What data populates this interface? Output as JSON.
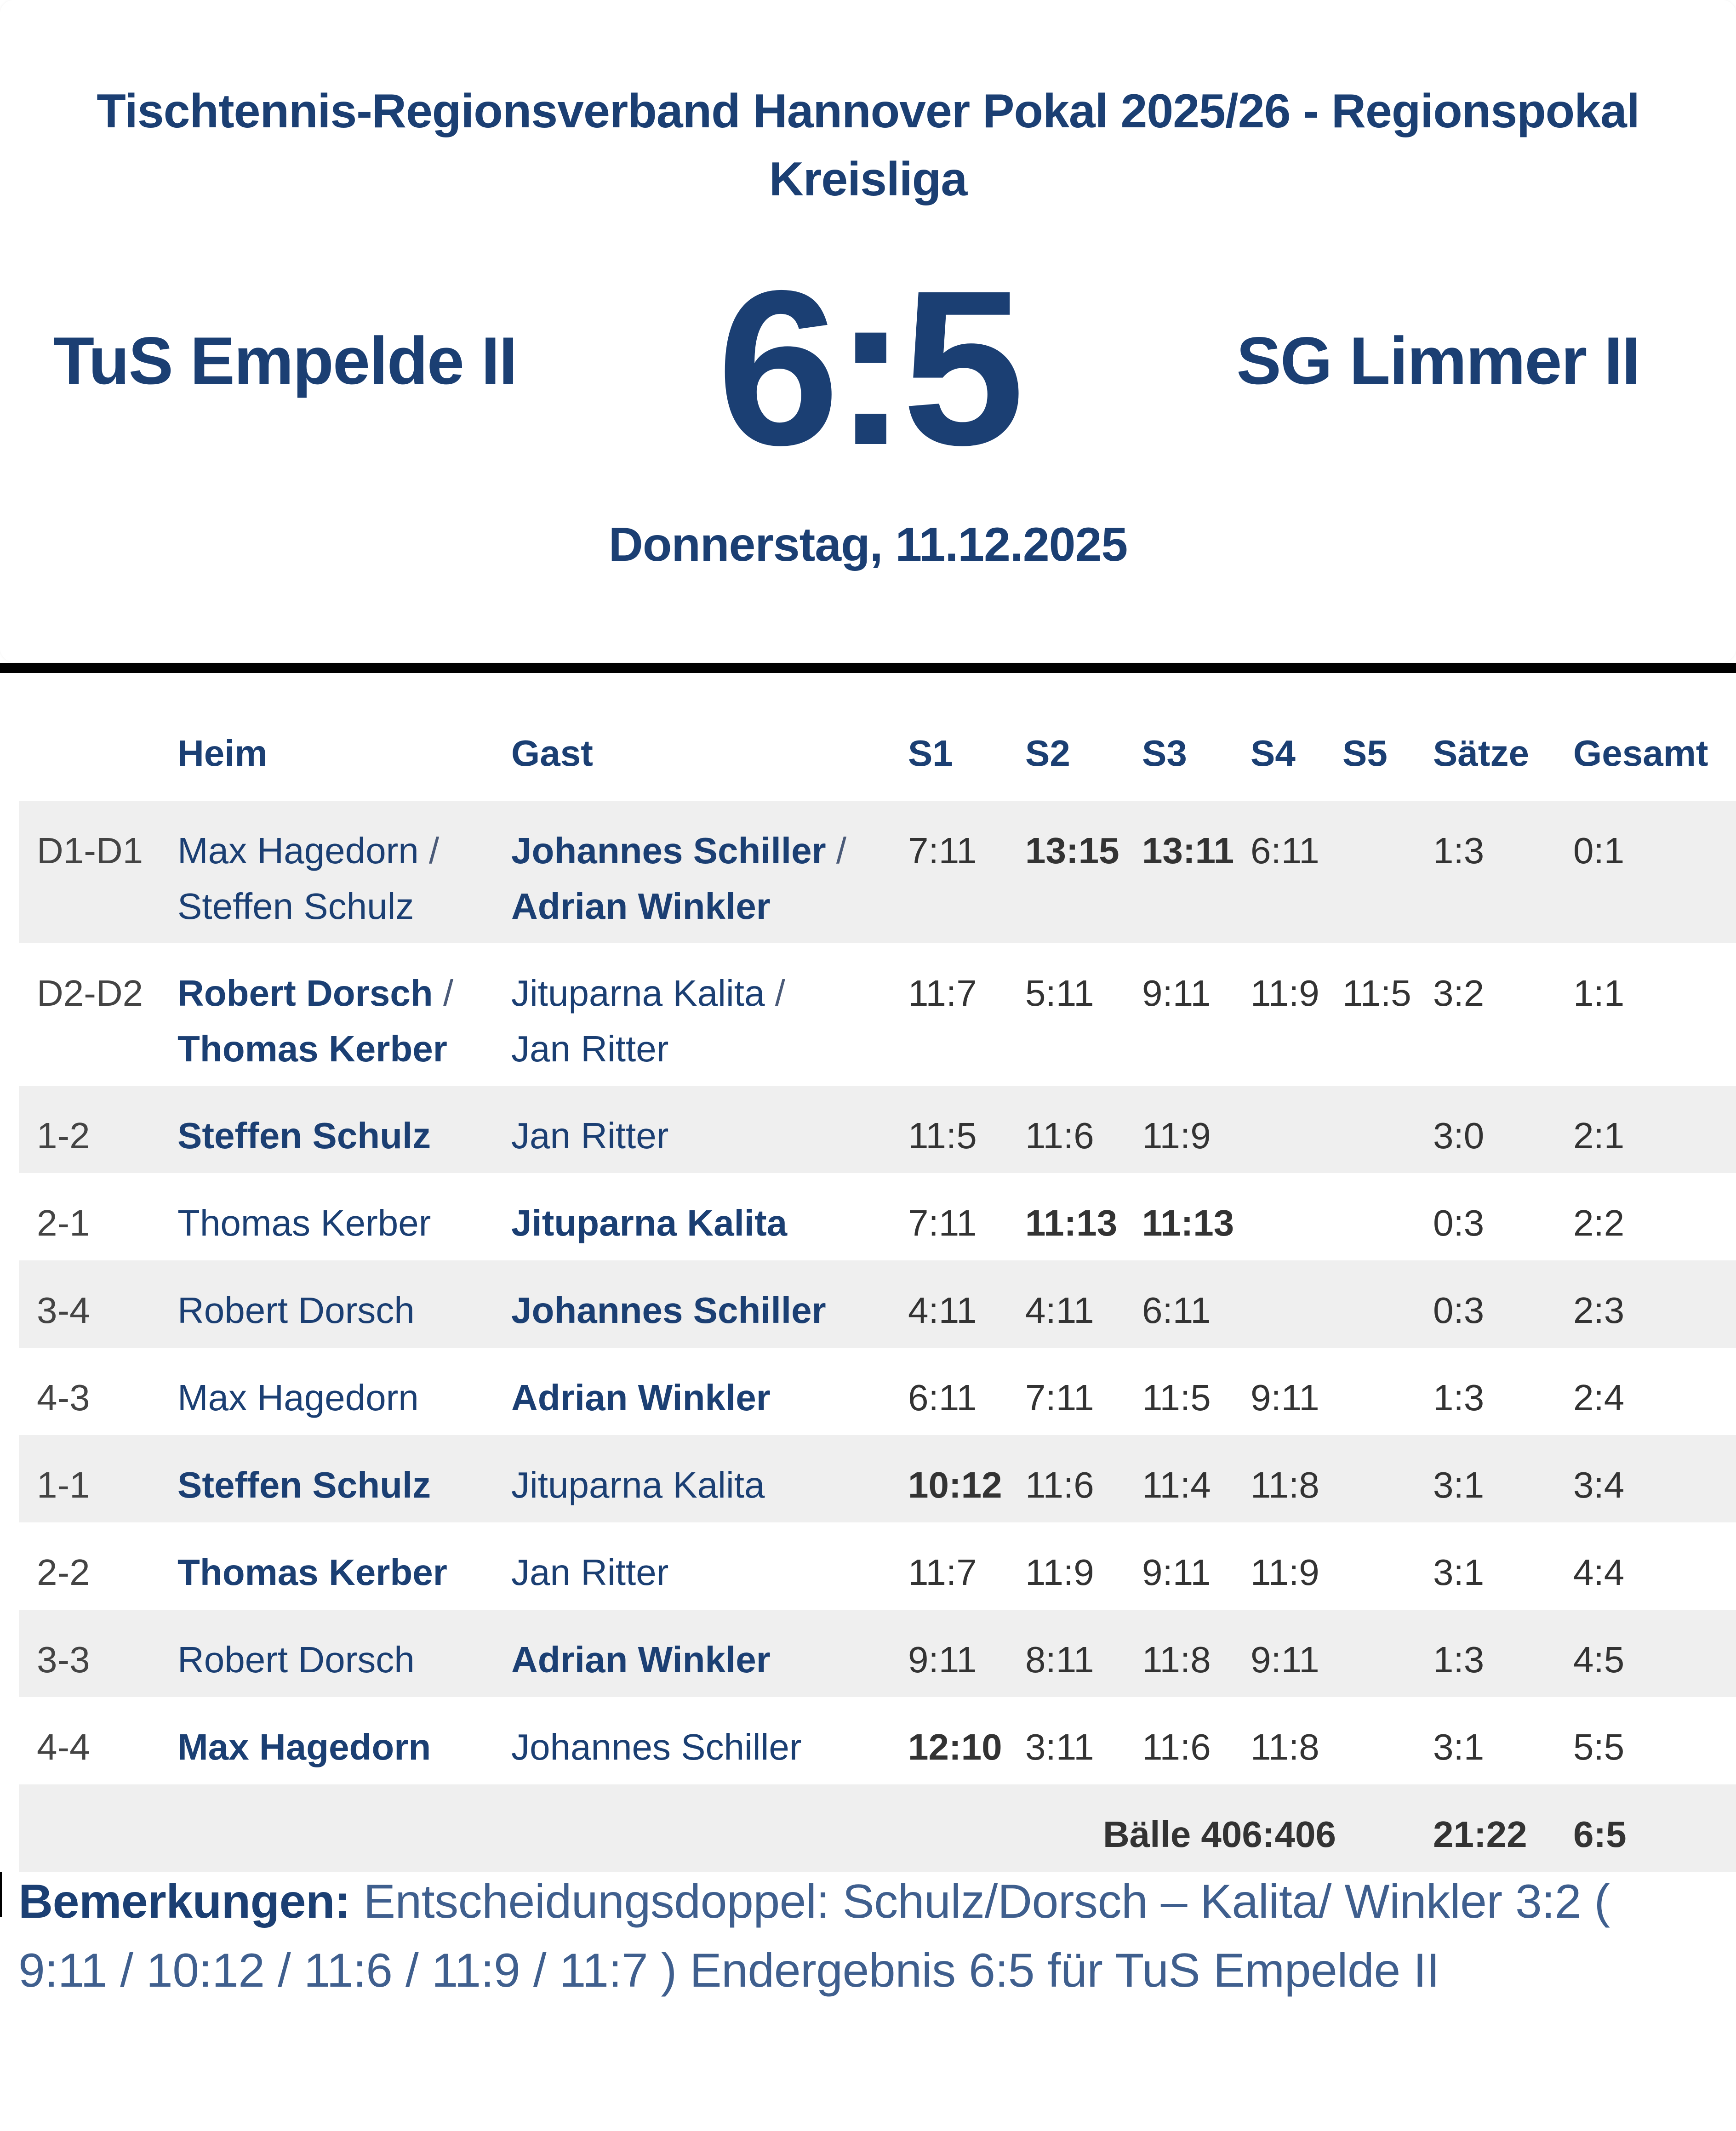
{
  "header": {
    "title_line1": "Tischtennis-Regionsverband Hannover Pokal 2025/26 - Regionspokal",
    "title_line2": "Kreisliga",
    "home_team": "TuS Empelde II",
    "guest_team": "SG Limmer II",
    "score": "6:5",
    "date": "Donnerstag, 11.12.2025"
  },
  "colors": {
    "navy": "#1b3f73",
    "score_text": "#333333",
    "row_stripe": "#efefef",
    "divider": "#000000"
  },
  "table": {
    "columns": {
      "code": "",
      "heim": "Heim",
      "gast": "Gast",
      "s1": "S1",
      "s2": "S2",
      "s3": "S3",
      "s4": "S4",
      "s5": "S5",
      "saetze": "Sätze",
      "gesamt": "Gesamt"
    },
    "rows": [
      {
        "code": "D1-D1",
        "heim": [
          "Max Hagedorn",
          "Steffen Schulz"
        ],
        "gast": [
          "Johannes Schiller",
          "Adrian Winkler"
        ],
        "winner": "gast",
        "s1": "7:11",
        "s2": "13:15",
        "s3": "13:11",
        "s4": "6:11",
        "s5": "",
        "bold_sets": [
          "s2",
          "s3"
        ],
        "saetze": "1:3",
        "gesamt": "0:1"
      },
      {
        "code": "D2-D2",
        "heim": [
          "Robert Dorsch",
          "Thomas Kerber"
        ],
        "gast": [
          "Jituparna Kalita",
          "Jan Ritter"
        ],
        "winner": "heim",
        "s1": "11:7",
        "s2": "5:11",
        "s3": "9:11",
        "s4": "11:9",
        "s5": "11:5",
        "bold_sets": [],
        "saetze": "3:2",
        "gesamt": "1:1"
      },
      {
        "code": "1-2",
        "heim": "Steffen Schulz",
        "gast": "Jan Ritter",
        "winner": "heim",
        "s1": "11:5",
        "s2": "11:6",
        "s3": "11:9",
        "s4": "",
        "s5": "",
        "bold_sets": [],
        "saetze": "3:0",
        "gesamt": "2:1"
      },
      {
        "code": "2-1",
        "heim": "Thomas Kerber",
        "gast": "Jituparna Kalita",
        "winner": "gast",
        "s1": "7:11",
        "s2": "11:13",
        "s3": "11:13",
        "s4": "",
        "s5": "",
        "bold_sets": [
          "s2",
          "s3"
        ],
        "saetze": "0:3",
        "gesamt": "2:2"
      },
      {
        "code": "3-4",
        "heim": "Robert Dorsch",
        "gast": "Johannes Schiller",
        "winner": "gast",
        "s1": "4:11",
        "s2": "4:11",
        "s3": "6:11",
        "s4": "",
        "s5": "",
        "bold_sets": [],
        "saetze": "0:3",
        "gesamt": "2:3"
      },
      {
        "code": "4-3",
        "heim": "Max Hagedorn",
        "gast": "Adrian Winkler",
        "winner": "gast",
        "s1": "6:11",
        "s2": "7:11",
        "s3": "11:5",
        "s4": "9:11",
        "s5": "",
        "bold_sets": [],
        "saetze": "1:3",
        "gesamt": "2:4"
      },
      {
        "code": "1-1",
        "heim": "Steffen Schulz",
        "gast": "Jituparna Kalita",
        "winner": "heim",
        "s1": "10:12",
        "s2": "11:6",
        "s3": "11:4",
        "s4": "11:8",
        "s5": "",
        "bold_sets": [
          "s1"
        ],
        "saetze": "3:1",
        "gesamt": "3:4"
      },
      {
        "code": "2-2",
        "heim": "Thomas Kerber",
        "gast": "Jan Ritter",
        "winner": "heim",
        "s1": "11:7",
        "s2": "11:9",
        "s3": "9:11",
        "s4": "11:9",
        "s5": "",
        "bold_sets": [],
        "saetze": "3:1",
        "gesamt": "4:4"
      },
      {
        "code": "3-3",
        "heim": "Robert Dorsch",
        "gast": "Adrian Winkler",
        "winner": "gast",
        "s1": "9:11",
        "s2": "8:11",
        "s3": "11:8",
        "s4": "9:11",
        "s5": "",
        "bold_sets": [],
        "saetze": "1:3",
        "gesamt": "4:5"
      },
      {
        "code": "4-4",
        "heim": "Max Hagedorn",
        "gast": "Johannes Schiller",
        "winner": "heim",
        "s1": "12:10",
        "s2": "3:11",
        "s3": "11:6",
        "s4": "11:8",
        "s5": "",
        "bold_sets": [
          "s1"
        ],
        "saetze": "3:1",
        "gesamt": "5:5"
      }
    ],
    "total": {
      "balls": "Bälle 406:406",
      "saetze": "21:22",
      "gesamt": "6:5"
    },
    "pair_separator": " /"
  },
  "remarks": {
    "label": "Bemerkungen:",
    "text": "Entscheidungsdoppel: Schulz/Dorsch – Kalita/ Winkler 3:2 ( 9:11 / 10:12 / 11:6 / 11:9 / 11:7 ) Endergebnis 6:5 für TuS Empelde II"
  }
}
